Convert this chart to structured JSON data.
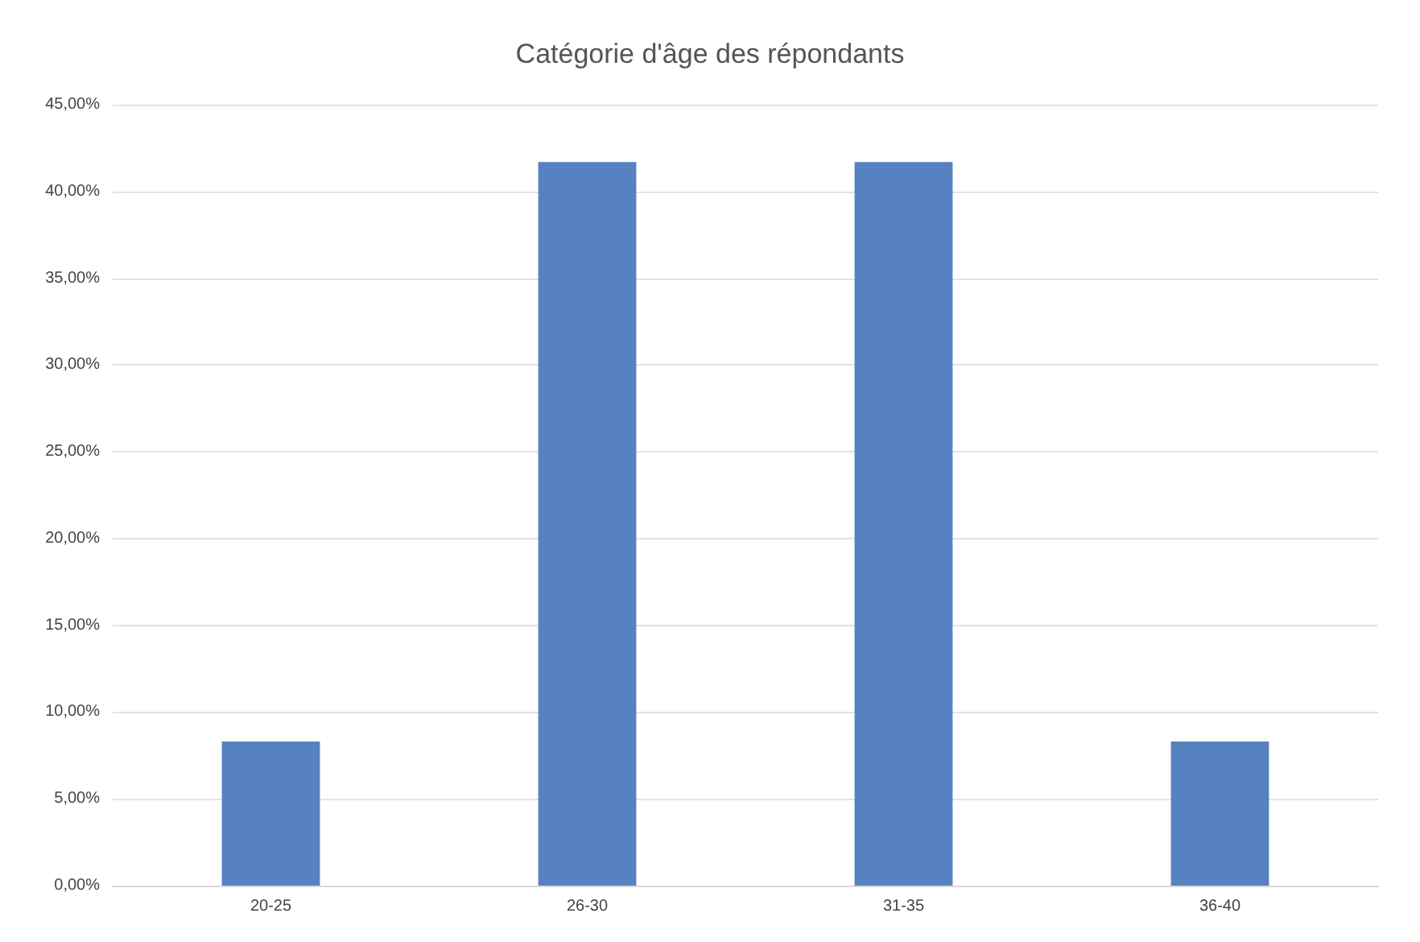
{
  "chart_data": {
    "type": "bar",
    "title": "Catégorie d'âge des répondants",
    "categories": [
      "20-25",
      "26-30",
      "31-35",
      "36-40"
    ],
    "values": [
      8.3,
      41.7,
      41.7,
      8.3
    ],
    "color": "#5682c2",
    "ylim": [
      0,
      45
    ],
    "yticks": [
      {
        "value": 0,
        "label": "0,00%"
      },
      {
        "value": 5,
        "label": "5,00%"
      },
      {
        "value": 10,
        "label": "10,00%"
      },
      {
        "value": 15,
        "label": "15,00%"
      },
      {
        "value": 20,
        "label": "20,00%"
      },
      {
        "value": 25,
        "label": "25,00%"
      },
      {
        "value": 30,
        "label": "30,00%"
      },
      {
        "value": 35,
        "label": "35,00%"
      },
      {
        "value": 40,
        "label": "40,00%"
      },
      {
        "value": 45,
        "label": "45,00%"
      }
    ],
    "grid": "y"
  }
}
